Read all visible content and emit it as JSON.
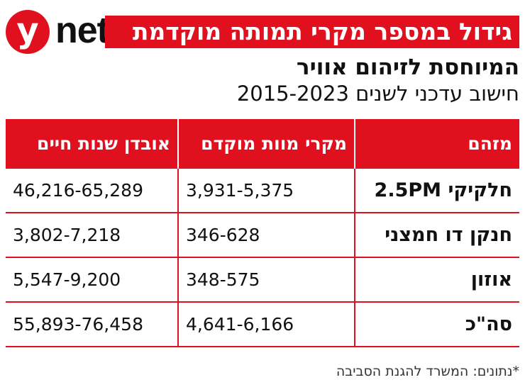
{
  "logo": {
    "y": "y",
    "net": "net"
  },
  "title": "גידול במספר מקרי תמותה מוקדמת",
  "subtitle": "המיוחסת לזיהום אוויר",
  "subtitle2": "חישוב עדכני לשנים 2015-2023",
  "table": {
    "headers": [
      "מזהם",
      "מקרי מוות מוקדם",
      "אובדן שנות חיים"
    ],
    "rows": [
      {
        "pollutant": "חלקיקי 2.5PM",
        "deaths": "3,931-5,375",
        "years": "46,216-65,289"
      },
      {
        "pollutant": "חנקן דו חמצני",
        "deaths": "346-628",
        "years": "3,802-7,218"
      },
      {
        "pollutant": "אוזון",
        "deaths": "348-575",
        "years": "5,547-9,200"
      },
      {
        "pollutant": "סה\"כ",
        "deaths": "4,641-6,166",
        "years": "55,893-76,458"
      }
    ]
  },
  "footnote": "*נתונים: המשרד להגנת הסביבה",
  "colors": {
    "accent": "#e1101f"
  }
}
